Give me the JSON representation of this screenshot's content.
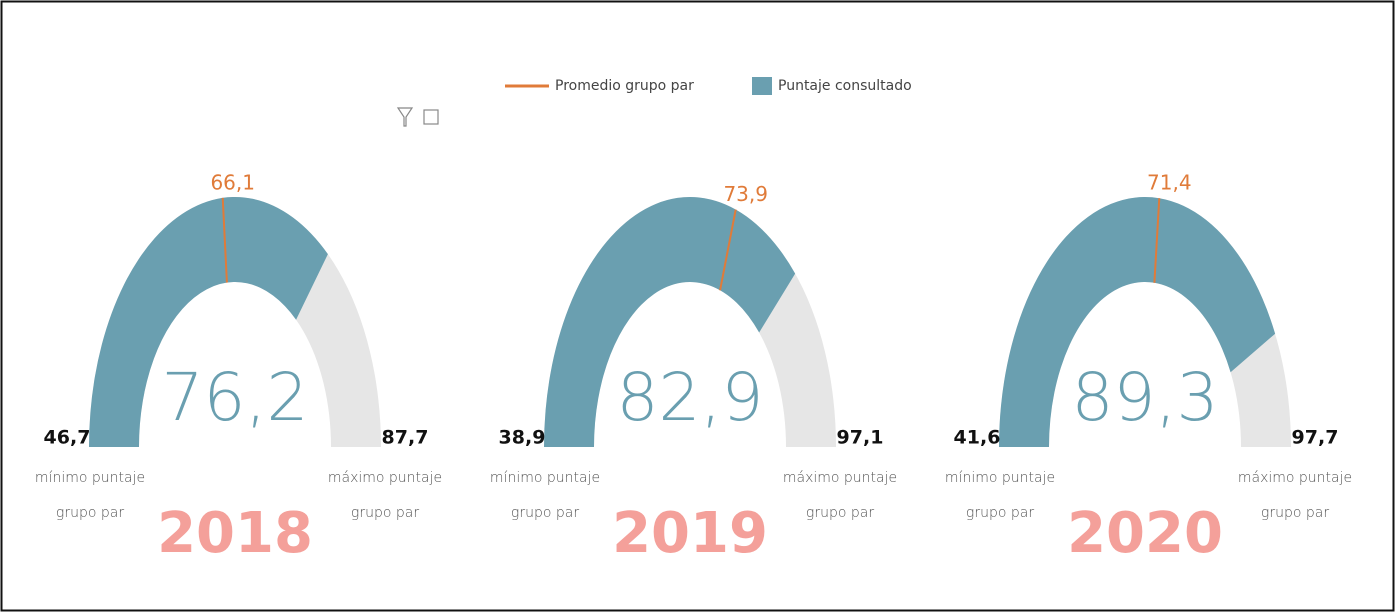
{
  "legend": [
    {
      "name": "Promedio grupo par",
      "color": "#e07b39"
    },
    {
      "name": "Puntaje consultado",
      "color": "#6a9fb0"
    }
  ],
  "captions": {
    "min": [
      "mínimo puntaje",
      "grupo par"
    ],
    "max": [
      "máximo puntaje",
      "grupo par"
    ]
  },
  "chart_data": [
    {
      "type": "gauge",
      "title": "2018",
      "color": "#6a9fb0",
      "track_color": "#e6e6e6",
      "target_color": "#e07b39",
      "values": {
        "min": 46.7,
        "value": 76.2,
        "target": 66.1,
        "max": 87.7
      },
      "value_labels": {
        "min": "46,7",
        "value": "76,2",
        "target": "66,1",
        "max": "87,7"
      }
    },
    {
      "type": "gauge",
      "title": "2019",
      "color": "#6a9fb0",
      "track_color": "#e6e6e6",
      "target_color": "#e07b39",
      "values": {
        "min": 38.9,
        "value": 82.9,
        "target": 73.9,
        "max": 97.1
      },
      "value_labels": {
        "min": "38,9",
        "value": "82,9",
        "target": "73,9",
        "max": "97,1"
      }
    },
    {
      "type": "gauge",
      "title": "2020",
      "color": "#6a9fb0",
      "track_color": "#e6e6e6",
      "target_color": "#e07b39",
      "values": {
        "min": 41.6,
        "value": 89.3,
        "target": 71.4,
        "max": 97.7
      },
      "value_labels": {
        "min": "41,6",
        "value": "89,3",
        "target": "71,4",
        "max": "97,7"
      }
    }
  ]
}
